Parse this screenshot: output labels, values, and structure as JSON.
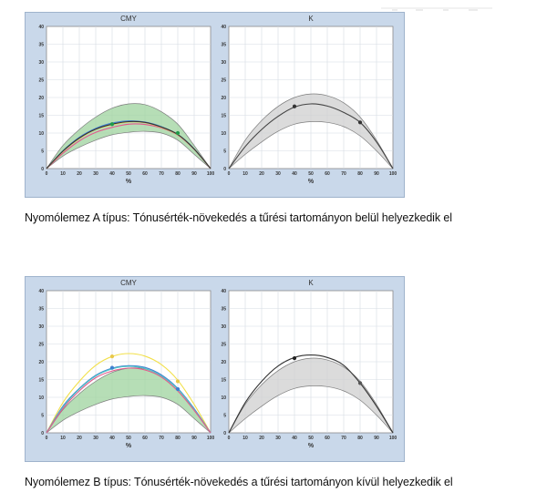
{
  "figures": [
    {
      "caption": "Nyomólemez A típus: Tónusérték-növekedés a tűrési tartományon belül helyezkedik el",
      "charts": [
        {
          "title": "CMY",
          "xlabel": "%"
        },
        {
          "title": "K",
          "xlabel": "%"
        }
      ]
    },
    {
      "caption": "Nyomólemez B típus: Tónusérték-növekedés a tűrési tartományon kívül helyezkedik el",
      "charts": [
        {
          "title": "CMY",
          "xlabel": "%"
        },
        {
          "title": "K",
          "xlabel": "%"
        }
      ]
    }
  ],
  "chart_data": [
    {
      "type": "line",
      "title": "CMY",
      "xlabel": "%",
      "ylabel": "",
      "xlim": [
        0,
        100
      ],
      "ylim": [
        0,
        40
      ],
      "xticks": [
        0,
        10,
        20,
        30,
        40,
        50,
        60,
        70,
        80,
        90,
        100
      ],
      "yticks": [
        0,
        5,
        10,
        15,
        20,
        25,
        30,
        35,
        40
      ],
      "grid": true,
      "tolerance_band": {
        "color": "#9ed39e",
        "x": [
          0,
          10,
          20,
          30,
          40,
          50,
          60,
          70,
          80,
          90,
          100
        ],
        "upper": [
          0,
          6.5,
          11,
          14.5,
          17,
          18.2,
          18,
          16,
          12.5,
          6.5,
          0
        ],
        "lower": [
          0,
          3.5,
          6,
          8,
          9.5,
          10.2,
          10.5,
          10,
          8,
          4,
          0
        ]
      },
      "x": [
        0,
        10,
        20,
        30,
        40,
        50,
        60,
        70,
        80,
        90,
        100
      ],
      "series": [
        {
          "color": "#3f7fd0",
          "values": [
            0,
            5,
            8.8,
            11.3,
            12.8,
            13.4,
            13.1,
            11.8,
            9.6,
            5.6,
            0
          ]
        },
        {
          "color": "#e35a8c",
          "values": [
            0,
            4.3,
            7.8,
            10.2,
            11.6,
            12.5,
            12.4,
            11.4,
            9.4,
            5.4,
            0
          ]
        },
        {
          "color": "#e8d060",
          "values": [
            0,
            4.8,
            8.4,
            11,
            12.3,
            13.1,
            12.9,
            11.6,
            9.5,
            5.5,
            0
          ]
        },
        {
          "color": "#333333",
          "values": [
            0,
            4.9,
            8.6,
            11.1,
            12.5,
            13.2,
            13,
            11.7,
            9.6,
            5.5,
            0
          ]
        }
      ],
      "markers": [
        {
          "x": 40,
          "y": 12.5,
          "color": "#1f9a4a"
        },
        {
          "x": 80,
          "y": 10,
          "color": "#1f9a4a"
        }
      ]
    },
    {
      "type": "line",
      "title": "K",
      "xlabel": "%",
      "ylabel": "",
      "xlim": [
        0,
        100
      ],
      "ylim": [
        0,
        40
      ],
      "xticks": [
        0,
        10,
        20,
        30,
        40,
        50,
        60,
        70,
        80,
        90,
        100
      ],
      "yticks": [
        0,
        5,
        10,
        15,
        20,
        25,
        30,
        35,
        40
      ],
      "grid": true,
      "tolerance_band": {
        "color": "#cfcfcf",
        "x": [
          0,
          10,
          20,
          30,
          40,
          50,
          60,
          70,
          80,
          90,
          100
        ],
        "upper": [
          0,
          8,
          13.5,
          17.5,
          20,
          21,
          20.5,
          18.5,
          14.5,
          8,
          0
        ],
        "lower": [
          0,
          4,
          7.5,
          10.5,
          12.5,
          13.2,
          13,
          11.8,
          9.2,
          5,
          0
        ]
      },
      "x": [
        0,
        10,
        20,
        30,
        40,
        50,
        60,
        70,
        80,
        90,
        100
      ],
      "series": [
        {
          "color": "#444444",
          "values": [
            0,
            6.2,
            11,
            14.7,
            17.3,
            18.2,
            17.6,
            15.8,
            13,
            7.5,
            0
          ]
        }
      ],
      "markers": [
        {
          "x": 40,
          "y": 17.5,
          "color": "#333333"
        },
        {
          "x": 80,
          "y": 13,
          "color": "#333333"
        }
      ]
    },
    {
      "type": "line",
      "title": "CMY",
      "xlabel": "%",
      "ylabel": "",
      "xlim": [
        0,
        100
      ],
      "ylim": [
        0,
        40
      ],
      "xticks": [
        0,
        10,
        20,
        30,
        40,
        50,
        60,
        70,
        80,
        90,
        100
      ],
      "yticks": [
        0,
        5,
        10,
        15,
        20,
        25,
        30,
        35,
        40
      ],
      "grid": true,
      "tolerance_band": {
        "color": "#9ed39e",
        "x": [
          0,
          10,
          20,
          30,
          40,
          50,
          60,
          70,
          80,
          90,
          100
        ],
        "upper": [
          0,
          6.5,
          11,
          14.5,
          17,
          18.2,
          18,
          16,
          12.5,
          6.5,
          0
        ],
        "lower": [
          0,
          3.5,
          6,
          8,
          9.5,
          10.2,
          10.5,
          10,
          8,
          4,
          0
        ]
      },
      "x": [
        0,
        10,
        20,
        30,
        40,
        50,
        60,
        70,
        80,
        90,
        100
      ],
      "series": [
        {
          "color": "#f2e04a",
          "values": [
            0,
            8.5,
            14.5,
            19,
            21.5,
            22.3,
            21.6,
            19.2,
            14.8,
            8,
            0
          ]
        },
        {
          "color": "#3f7fd0",
          "values": [
            0,
            7.5,
            12.5,
            16.2,
            18.2,
            18.9,
            18.4,
            16.3,
            12.5,
            6.8,
            0
          ]
        },
        {
          "color": "#4fc6c6",
          "values": [
            0,
            7.2,
            12.3,
            16,
            18,
            18.7,
            18.1,
            16,
            12.3,
            6.6,
            0
          ]
        },
        {
          "color": "#e35a8c",
          "values": [
            0,
            6.8,
            11.8,
            15.5,
            17.4,
            18.2,
            17.7,
            15.7,
            11.8,
            6.3,
            0
          ]
        }
      ],
      "markers": [
        {
          "x": 40,
          "y": 21.5,
          "color": "#e8c84a"
        },
        {
          "x": 40,
          "y": 18.3,
          "color": "#3f7fd0"
        },
        {
          "x": 80,
          "y": 14.5,
          "color": "#e8c84a"
        },
        {
          "x": 80,
          "y": 12.3,
          "color": "#3f7fd0"
        }
      ]
    },
    {
      "type": "line",
      "title": "K",
      "xlabel": "%",
      "ylabel": "",
      "xlim": [
        0,
        100
      ],
      "ylim": [
        0,
        40
      ],
      "xticks": [
        0,
        10,
        20,
        30,
        40,
        50,
        60,
        70,
        80,
        90,
        100
      ],
      "yticks": [
        0,
        5,
        10,
        15,
        20,
        25,
        30,
        35,
        40
      ],
      "grid": true,
      "tolerance_band": {
        "color": "#cfcfcf",
        "x": [
          0,
          10,
          20,
          30,
          40,
          50,
          60,
          70,
          80,
          90,
          100
        ],
        "upper": [
          0,
          8,
          13.5,
          17.5,
          20,
          21,
          20.5,
          18.5,
          14.5,
          8,
          0
        ],
        "lower": [
          0,
          4,
          7.5,
          10.5,
          12.5,
          13.2,
          13,
          11.8,
          9.2,
          5,
          0
        ]
      },
      "x": [
        0,
        10,
        20,
        30,
        40,
        50,
        60,
        70,
        80,
        90,
        100
      ],
      "series": [
        {
          "color": "#333333",
          "values": [
            0,
            8.5,
            14.5,
            18.8,
            21.2,
            21.9,
            21.2,
            19,
            14,
            7.5,
            0
          ]
        }
      ],
      "markers": [
        {
          "x": 40,
          "y": 21,
          "color": "#222222"
        },
        {
          "x": 80,
          "y": 14,
          "color": "#555555"
        }
      ]
    }
  ]
}
